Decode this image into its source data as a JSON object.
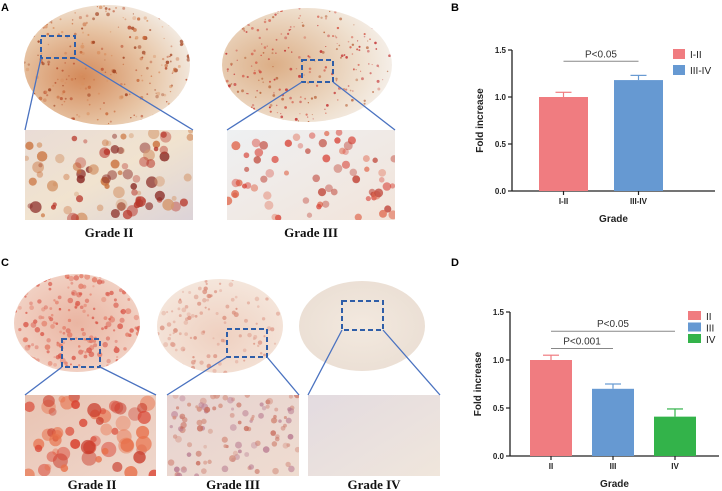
{
  "panels": {
    "A": {
      "label": "A",
      "images": [
        {
          "grade_label": "Grade II"
        },
        {
          "grade_label": "Grade III"
        }
      ]
    },
    "B": {
      "label": "B"
    },
    "C": {
      "label": "C",
      "images": [
        {
          "grade_label": "Grade II"
        },
        {
          "grade_label": "Grade III"
        },
        {
          "grade_label": "Grade IV"
        }
      ]
    },
    "D": {
      "label": "D"
    }
  },
  "chart_data": [
    {
      "panel": "B",
      "type": "bar",
      "title": "",
      "xlabel": "Grade",
      "ylabel": "Fold increase",
      "categories": [
        "I-II",
        "III-IV"
      ],
      "values": [
        1.0,
        1.18
      ],
      "errors": [
        0.05,
        0.05
      ],
      "colors": [
        "#f07c80",
        "#6699d2"
      ],
      "ylim": [
        0,
        1.5
      ],
      "yticks": [
        "0.0",
        "0.5",
        "1.0",
        "1.5"
      ],
      "yticks_values": [
        0,
        0.5,
        1.0,
        1.5
      ],
      "legend": {
        "placement": "top-right",
        "entries": [
          "I-II",
          "III-IV"
        ]
      },
      "significance": [
        {
          "from": 0,
          "to": 1,
          "label": "P<0.05",
          "level": 1.38
        }
      ]
    },
    {
      "panel": "D",
      "type": "bar",
      "title": "",
      "xlabel": "Grade",
      "ylabel": "Fold increase",
      "categories": [
        "II",
        "III",
        "IV"
      ],
      "values": [
        1.0,
        0.7,
        0.41
      ],
      "errors": [
        0.05,
        0.05,
        0.08
      ],
      "colors": [
        "#f07c80",
        "#6699d2",
        "#33b34a"
      ],
      "ylim": [
        0,
        1.5
      ],
      "yticks": [
        "0.0",
        "0.5",
        "1.0",
        "1.5"
      ],
      "yticks_values": [
        0,
        0.5,
        1.0,
        1.5
      ],
      "legend": {
        "placement": "top-right",
        "entries": [
          "II",
          "III",
          "IV"
        ]
      },
      "significance": [
        {
          "from": 0,
          "to": 2,
          "label": "P<0.05",
          "level": 1.3
        },
        {
          "from": 0,
          "to": 1,
          "label": "P<0.001",
          "level": 1.12
        }
      ]
    }
  ]
}
